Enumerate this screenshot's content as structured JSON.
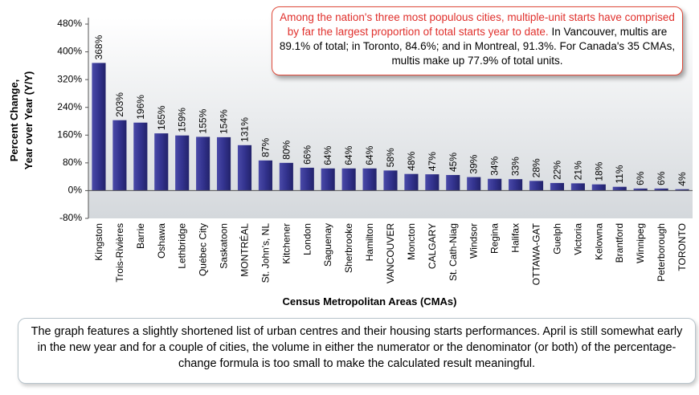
{
  "chart_data": {
    "type": "bar",
    "ylabel": [
      "Percent Change,",
      "Year over Year (Y/Y)"
    ],
    "xlabel": "Census Metropolitan Areas (CMAs)",
    "categories": [
      "Kingston",
      "Trois-Rivières",
      "Barrie",
      "Oshawa",
      "Lethbridge",
      "Québec City",
      "Saskatoon",
      "MONTRÉAL",
      "St. John's, NL",
      "Kitchener",
      "London",
      "Saguenay",
      "Sherbrooke",
      "Hamilton",
      "VANCOUVER",
      "Moncton",
      "CALGARY",
      "St. Cath-Niag",
      "Windsor",
      "Regina",
      "Halifax",
      "OTTAWA-GAT",
      "Guelph",
      "Victoria",
      "Kelowna",
      "Brantford",
      "Winnipeg",
      "Peterborough",
      "TORONTO"
    ],
    "values": [
      368,
      203,
      196,
      165,
      159,
      155,
      154,
      131,
      87,
      80,
      66,
      64,
      64,
      64,
      58,
      48,
      47,
      45,
      39,
      34,
      33,
      28,
      22,
      21,
      18,
      11,
      6,
      6,
      4
    ],
    "value_labels": [
      "368%",
      "203%",
      "196%",
      "165%",
      "159%",
      "155%",
      "154%",
      "131%",
      "87%",
      "80%",
      "66%",
      "64%",
      "64%",
      "64%",
      "58%",
      "48%",
      "47%",
      "45%",
      "39%",
      "34%",
      "33%",
      "28%",
      "22%",
      "21%",
      "18%",
      "11%",
      "6%",
      "6%",
      "4%"
    ],
    "color": "#33338f",
    "ylim": [
      -80,
      480
    ],
    "yticks": [
      {
        "value": -80,
        "label": "-80%"
      },
      {
        "value": 0,
        "label": "0%"
      },
      {
        "value": 80,
        "label": "80%"
      },
      {
        "value": 160,
        "label": "160%"
      },
      {
        "value": 240,
        "label": "240%"
      },
      {
        "value": 320,
        "label": "320%"
      },
      {
        "value": 400,
        "label": "400%"
      },
      {
        "value": 480,
        "label": "480%"
      }
    ],
    "grid": false,
    "annotation_highlight": "Among the nation's three most populous cities, multiple-unit starts have comprised by far the largest proportion of total starts year to date.",
    "annotation": "In Vancouver, multis are 89.1% of total; in Toronto, 84.6%; and in Montreal, 91.3%. For Canada's 35 CMAs, multis make up 77.9% of total units.",
    "caption": "The graph features a slightly shortened list of urban centres and their housing starts performances. April is still somewhat early in the new year and for a couple of cities, the volume in either the numerator or the denominator (or both) of the percentage-change formula is too small to make the calculated result meaningful."
  }
}
